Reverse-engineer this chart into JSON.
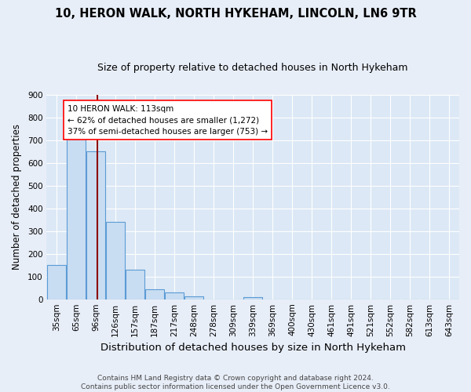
{
  "title1": "10, HERON WALK, NORTH HYKEHAM, LINCOLN, LN6 9TR",
  "title2": "Size of property relative to detached houses in North Hykeham",
  "xlabel": "Distribution of detached houses by size in North Hykeham",
  "ylabel": "Number of detached properties",
  "footer": "Contains HM Land Registry data © Crown copyright and database right 2024.\nContains public sector information licensed under the Open Government Licence v3.0.",
  "bin_labels": [
    "35sqm",
    "65sqm",
    "96sqm",
    "126sqm",
    "157sqm",
    "187sqm",
    "217sqm",
    "248sqm",
    "278sqm",
    "309sqm",
    "339sqm",
    "369sqm",
    "400sqm",
    "430sqm",
    "461sqm",
    "491sqm",
    "521sqm",
    "552sqm",
    "582sqm",
    "613sqm",
    "643sqm"
  ],
  "bar_values": [
    150,
    717,
    650,
    340,
    130,
    42,
    30,
    12,
    0,
    0,
    8,
    0,
    0,
    0,
    0,
    0,
    0,
    0,
    0,
    0,
    0
  ],
  "bar_color": "#c9ddf2",
  "bar_edge_color": "#5b9bd5",
  "property_line_color": "#8b0000",
  "annotation_text": "10 HERON WALK: 113sqm\n← 62% of detached houses are smaller (1,272)\n37% of semi-detached houses are larger (753) →",
  "annotation_box_color": "white",
  "annotation_box_edge_color": "red",
  "ylim": [
    0,
    900
  ],
  "yticks": [
    0,
    100,
    200,
    300,
    400,
    500,
    600,
    700,
    800,
    900
  ],
  "bg_color": "#e8eef8",
  "plot_bg_color": "#dce8f5",
  "grid_color": "#ffffff",
  "title1_fontsize": 10.5,
  "title2_fontsize": 9,
  "xlabel_fontsize": 9.5,
  "ylabel_fontsize": 8.5,
  "tick_fontsize": 7.5,
  "footer_fontsize": 6.5
}
